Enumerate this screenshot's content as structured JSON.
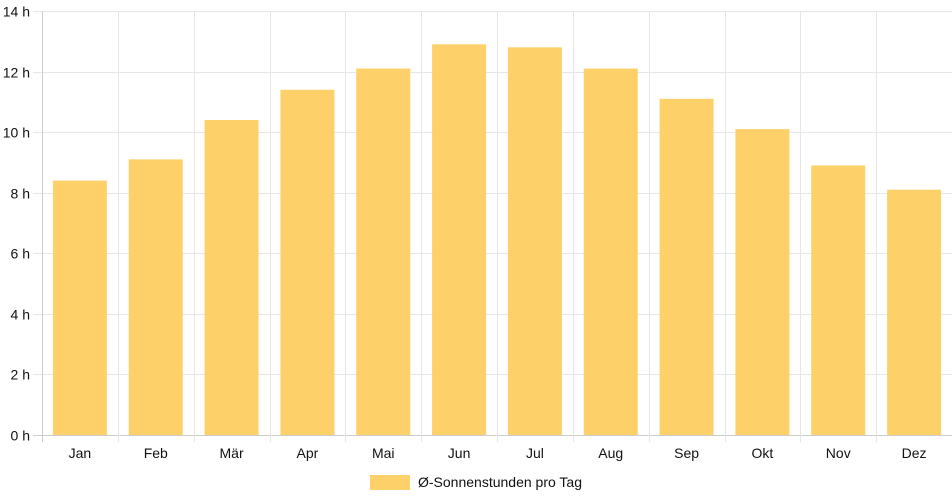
{
  "chart_data": {
    "type": "bar",
    "categories": [
      "Jan",
      "Feb",
      "Mär",
      "Apr",
      "Mai",
      "Jun",
      "Jul",
      "Aug",
      "Sep",
      "Okt",
      "Nov",
      "Dez"
    ],
    "series": [
      {
        "name": "Ø-Sonnenstunden pro Tag",
        "values": [
          8.4,
          9.1,
          10.4,
          11.4,
          12.1,
          12.9,
          12.8,
          12.1,
          11.1,
          10.1,
          8.9,
          8.1
        ],
        "color": "#fdd06a"
      }
    ],
    "y_ticks": [
      "0 h",
      "2 h",
      "4 h",
      "6 h",
      "8 h",
      "10 h",
      "12 h",
      "14 h"
    ],
    "ylim": [
      0,
      14
    ],
    "grid": true,
    "legend_position": "bottom"
  }
}
